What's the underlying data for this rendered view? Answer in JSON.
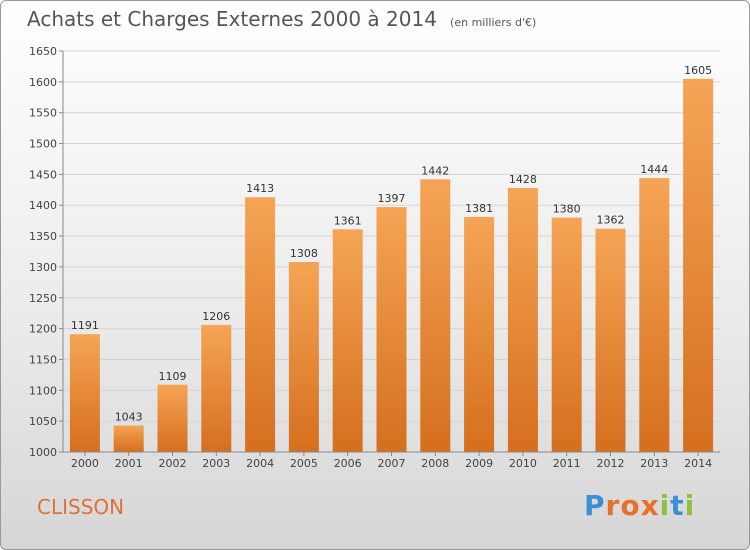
{
  "header": {
    "title": "Achats et Charges Externes 2000 à 2014",
    "unit": "(en milliers d'€)"
  },
  "footer": {
    "location": "CLISSON",
    "brand": "Proxiti"
  },
  "colors": {
    "bar_top": "#f5a555",
    "bar_bottom": "#d56f1e",
    "town_text": "#e0703a",
    "grid": "#d4d4d4"
  },
  "chart_data": {
    "type": "bar",
    "title": "Achats et Charges Externes 2000 à 2014",
    "subtitle": "(en milliers d'€)",
    "categories": [
      "2000",
      "2001",
      "2002",
      "2003",
      "2004",
      "2005",
      "2006",
      "2007",
      "2008",
      "2009",
      "2010",
      "2011",
      "2012",
      "2013",
      "2014"
    ],
    "values": [
      1191,
      1043,
      1109,
      1206,
      1413,
      1308,
      1361,
      1397,
      1442,
      1381,
      1428,
      1380,
      1362,
      1444,
      1605
    ],
    "ylim": [
      1000,
      1650
    ],
    "yticks": [
      1000,
      1050,
      1100,
      1150,
      1200,
      1250,
      1300,
      1350,
      1400,
      1450,
      1500,
      1550,
      1600,
      1650
    ],
    "grid": true,
    "xlabel": "",
    "ylabel": ""
  }
}
